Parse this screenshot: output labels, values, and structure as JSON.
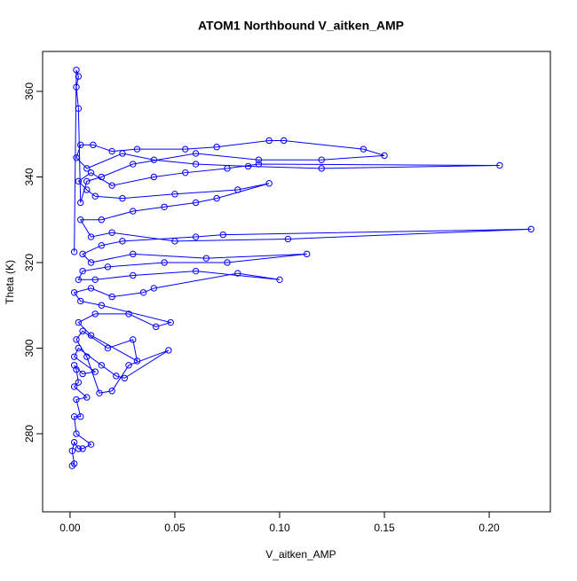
{
  "chart_data": {
    "type": "line",
    "title": "ATOM1 Northbound V_aitken_AMP",
    "x_label": "V_aitken_AMP",
    "y_label": "Theta (K)",
    "color": "#0000ff",
    "markers": true,
    "xlim": [
      -0.0131,
      0.2292
    ],
    "ylim": [
      261.76,
      369.33
    ],
    "xticks": [
      {
        "value": 0,
        "label": "0.00"
      },
      {
        "value": 0.05,
        "label": "0.05"
      },
      {
        "value": 0.1,
        "label": "0.10"
      },
      {
        "value": 0.15,
        "label": "0.15"
      },
      {
        "value": 0.2,
        "label": "0.20"
      }
    ],
    "yticks": [
      280,
      300,
      320,
      340,
      360
    ],
    "x": [
      0.001,
      0.002,
      0.001,
      0.002,
      0.004,
      0.006,
      0.01,
      0.003,
      0.002,
      0.005,
      0.003,
      0.008,
      0.002,
      0.004,
      0.003,
      0.002,
      0.006,
      0.012,
      0.002,
      0.004,
      0.015,
      0.022,
      0.026,
      0.047,
      0.028,
      0.02,
      0.014,
      0.008,
      0.003,
      0.006,
      0.018,
      0.03,
      0.032,
      0.01,
      0.004,
      0.012,
      0.028,
      0.041,
      0.048,
      0.015,
      0.005,
      0.002,
      0.01,
      0.02,
      0.035,
      0.04,
      0.08,
      0.1,
      0.06,
      0.03,
      0.012,
      0.004,
      0.006,
      0.018,
      0.045,
      0.075,
      0.113,
      0.065,
      0.03,
      0.01,
      0.006,
      0.015,
      0.025,
      0.06,
      0.073,
      0.22,
      0.104,
      0.05,
      0.02,
      0.01,
      0.005,
      0.015,
      0.03,
      0.045,
      0.06,
      0.07,
      0.095,
      0.08,
      0.05,
      0.025,
      0.012,
      0.008,
      0.004,
      0.01,
      0.02,
      0.04,
      0.055,
      0.075,
      0.09,
      0.205,
      0.12,
      0.085,
      0.06,
      0.04,
      0.025,
      0.008,
      0.003,
      0.005,
      0.011,
      0.02,
      0.032,
      0.055,
      0.07,
      0.095,
      0.102,
      0.14,
      0.15,
      0.12,
      0.09,
      0.06,
      0.03,
      0.015,
      0.008,
      0.005,
      0.004,
      0.003,
      0.004,
      0.003,
      0.002
    ],
    "y": [
      272.5,
      273,
      276,
      278,
      276.5,
      276.5,
      277.5,
      280,
      284,
      284,
      288,
      288.5,
      291,
      292,
      295,
      296,
      294,
      294.5,
      298,
      300,
      296,
      293.5,
      293,
      299.5,
      296,
      290,
      289.5,
      298,
      302,
      304,
      300,
      302,
      297,
      303,
      306,
      308,
      308,
      305,
      306,
      310,
      311,
      313,
      314,
      312,
      313,
      314,
      317.5,
      316,
      318,
      317,
      316,
      316,
      318,
      319,
      320,
      320,
      322,
      321,
      322,
      320,
      322,
      324,
      325,
      326,
      326.5,
      327.8,
      325.5,
      325,
      327,
      326,
      330,
      330,
      332,
      333,
      334,
      335,
      338.5,
      337,
      336,
      335,
      335.5,
      337,
      339,
      341,
      338,
      340,
      341,
      342,
      343,
      342.7,
      342,
      342.5,
      343,
      344,
      345.5,
      342,
      344.5,
      347.5,
      347.5,
      346,
      346.5,
      346.5,
      347,
      348.5,
      348.5,
      346.5,
      345,
      344,
      344,
      345.5,
      343,
      340,
      339,
      334,
      356,
      361,
      363.5,
      365,
      322.5
    ]
  }
}
